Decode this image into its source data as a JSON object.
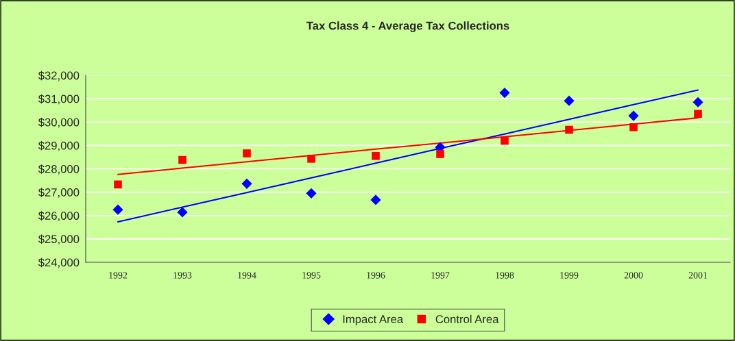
{
  "chart_data": {
    "type": "scatter",
    "title": "Tax Class 4 - Average Tax Collections",
    "categories": [
      "1992",
      "1993",
      "1994",
      "1995",
      "1996",
      "1997",
      "1998",
      "1999",
      "2000",
      "2001"
    ],
    "series": [
      {
        "name": "Impact Area",
        "color": "#0000ff",
        "marker": "diamond",
        "values": [
          26250,
          26140,
          27360,
          26950,
          26670,
          28920,
          31250,
          30910,
          30270,
          30850
        ]
      },
      {
        "name": "Control Area",
        "color": "#ff0000",
        "marker": "square",
        "values": [
          27330,
          28380,
          28660,
          28430,
          28550,
          28630,
          29200,
          29670,
          29780,
          30350
        ]
      },
      {
        "type": "line",
        "color": "#0000ff",
        "values": [
          25730,
          26360,
          26980,
          27610,
          28240,
          28870,
          29490,
          30120,
          30750,
          31370
        ]
      },
      {
        "type": "line",
        "color": "#ff0000",
        "values": [
          27760,
          28030,
          28300,
          28570,
          28840,
          29100,
          29370,
          29640,
          29910,
          30180
        ]
      }
    ],
    "ylim": [
      24000,
      32000
    ],
    "yticks": [
      {
        "value": 24000,
        "label": "$24,000"
      },
      {
        "value": 25000,
        "label": "$25,000"
      },
      {
        "value": 26000,
        "label": "$26,000"
      },
      {
        "value": 27000,
        "label": "$27,000"
      },
      {
        "value": 28000,
        "label": "$28,000"
      },
      {
        "value": 29000,
        "label": "$29,000"
      },
      {
        "value": 30000,
        "label": "$30,000"
      },
      {
        "value": 31000,
        "label": "$31,000"
      },
      {
        "value": 32000,
        "label": "$32,000"
      }
    ],
    "grid": "y",
    "legend": "bottom"
  }
}
